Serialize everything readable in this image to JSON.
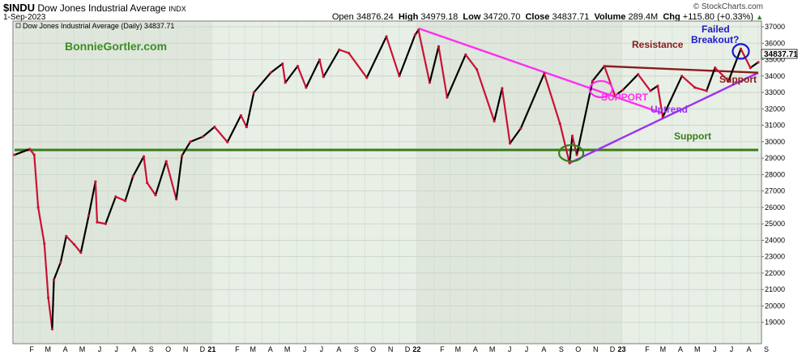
{
  "header": {
    "symbol": "$INDU",
    "name": "Dow Jones Industrial Average",
    "exchange": "INDX",
    "date": "1-Sep-2023",
    "copyright": "© StockCharts.com",
    "open_label": "Open",
    "open": "34876.24",
    "high_label": "High",
    "high": "34979.18",
    "low_label": "Low",
    "low": "34720.70",
    "close_label": "Close",
    "close": "34837.71",
    "volume_label": "Volume",
    "volume": "289.4M",
    "chg_label": "Chg",
    "chg": "+115.80 (+0.33%)",
    "chg_arrow": "▲",
    "legend": "Dow Jones Industrial Average (Daily) 34837.71",
    "price_tag": "34837.71"
  },
  "watermark": "BonnieGortler.com",
  "colors": {
    "up": "#000000",
    "down": "#cc1133",
    "bg": "#e8efe6",
    "bg_alt": "#dfe6dc",
    "green_line": "#3a7d1a",
    "magenta": "#ff2ef0",
    "purple": "#9933ee",
    "resistance": "#8b1a1a",
    "blue": "#1a1acc",
    "watermark": "#3a8d24"
  },
  "chart_data": {
    "type": "line",
    "title": "Dow Jones Industrial Average (Daily) 34837.71",
    "xlabel": "",
    "ylabel": "",
    "ylim": [
      18000,
      37000
    ],
    "y_ticks": [
      19000,
      20000,
      21000,
      22000,
      23000,
      24000,
      25000,
      26000,
      27000,
      28000,
      29000,
      30000,
      31000,
      32000,
      33000,
      34000,
      35000,
      36000,
      37000
    ],
    "x_tick_labels": [
      "F",
      "M",
      "A",
      "M",
      "J",
      "J",
      "A",
      "S",
      "O",
      "N",
      "D",
      "21",
      "F",
      "M",
      "A",
      "M",
      "J",
      "J",
      "A",
      "S",
      "O",
      "N",
      "D",
      "22",
      "F",
      "M",
      "A",
      "M",
      "J",
      "J",
      "A",
      "S",
      "O",
      "N",
      "D",
      "23",
      "F",
      "M",
      "A",
      "M",
      "J",
      "J",
      "A",
      "S"
    ],
    "x_start": "2020-01-16",
    "x_end": "2023-09-01",
    "grid": true,
    "series": [
      {
        "name": "",
        "points": [
          [
            "2020-01-16",
            29200
          ],
          [
            "2020-02-12",
            29550
          ],
          [
            "2020-02-20",
            29200
          ],
          [
            "2020-02-27",
            26000
          ],
          [
            "2020-03-09",
            23800
          ],
          [
            "2020-03-16",
            20500
          ],
          [
            "2020-03-23",
            18590
          ],
          [
            "2020-03-26",
            21600
          ],
          [
            "2020-04-07",
            22650
          ],
          [
            "2020-04-17",
            24250
          ],
          [
            "2020-05-01",
            23750
          ],
          [
            "2020-05-13",
            23250
          ],
          [
            "2020-05-27",
            25500
          ],
          [
            "2020-06-08",
            27570
          ],
          [
            "2020-06-11",
            25100
          ],
          [
            "2020-06-26",
            25000
          ],
          [
            "2020-07-14",
            26650
          ],
          [
            "2020-07-31",
            26400
          ],
          [
            "2020-08-14",
            27900
          ],
          [
            "2020-09-02",
            29100
          ],
          [
            "2020-09-08",
            27500
          ],
          [
            "2020-09-23",
            26750
          ],
          [
            "2020-10-12",
            28800
          ],
          [
            "2020-10-30",
            26500
          ],
          [
            "2020-11-09",
            29150
          ],
          [
            "2020-11-24",
            30000
          ],
          [
            "2020-12-16",
            30300
          ],
          [
            "2021-01-06",
            30900
          ],
          [
            "2021-01-29",
            29980
          ],
          [
            "2021-02-22",
            31600
          ],
          [
            "2021-03-04",
            30900
          ],
          [
            "2021-03-17",
            33000
          ],
          [
            "2021-04-16",
            34200
          ],
          [
            "2021-05-07",
            34750
          ],
          [
            "2021-05-12",
            33600
          ],
          [
            "2021-06-03",
            34600
          ],
          [
            "2021-06-18",
            33300
          ],
          [
            "2021-07-12",
            34990
          ],
          [
            "2021-07-19",
            33950
          ],
          [
            "2021-08-16",
            35600
          ],
          [
            "2021-09-02",
            35400
          ],
          [
            "2021-10-04",
            33900
          ],
          [
            "2021-11-08",
            36400
          ],
          [
            "2021-12-01",
            34000
          ],
          [
            "2021-12-29",
            36500
          ],
          [
            "2022-01-04",
            36800
          ],
          [
            "2022-01-24",
            33600
          ],
          [
            "2022-02-09",
            35800
          ],
          [
            "2022-02-24",
            32700
          ],
          [
            "2022-03-29",
            35300
          ],
          [
            "2022-04-18",
            34400
          ],
          [
            "2022-05-19",
            31250
          ],
          [
            "2022-06-02",
            33250
          ],
          [
            "2022-06-16",
            29900
          ],
          [
            "2022-07-05",
            30800
          ],
          [
            "2022-08-16",
            34150
          ],
          [
            "2022-09-13",
            31100
          ],
          [
            "2022-09-30",
            28700
          ],
          [
            "2022-10-05",
            30350
          ],
          [
            "2022-10-13",
            29200
          ],
          [
            "2022-11-10",
            33700
          ],
          [
            "2022-12-01",
            34600
          ],
          [
            "2022-12-20",
            32800
          ],
          [
            "2023-01-03",
            33150
          ],
          [
            "2023-01-30",
            34100
          ],
          [
            "2023-02-21",
            33100
          ],
          [
            "2023-03-06",
            33400
          ],
          [
            "2023-03-15",
            31500
          ],
          [
            "2023-04-18",
            34000
          ],
          [
            "2023-05-11",
            33300
          ],
          [
            "2023-06-01",
            33100
          ],
          [
            "2023-06-16",
            34500
          ],
          [
            "2023-07-10",
            33700
          ],
          [
            "2023-08-01",
            35650
          ],
          [
            "2023-08-18",
            34500
          ],
          [
            "2023-09-01",
            34837.71
          ]
        ]
      }
    ],
    "annotations": [
      {
        "text": "Resistance",
        "color": "#8b1a1a"
      },
      {
        "text": "Failed",
        "color": "#1a1acc"
      },
      {
        "text": "Breakout?",
        "color": "#1a1acc"
      },
      {
        "text": "Support",
        "color": "#8b1a1a"
      },
      {
        "text": "SUPPORT",
        "color": "#ff2ef0"
      },
      {
        "text": "Uptrend",
        "color": "#9933ee"
      },
      {
        "text": "Support",
        "color": "#3a7d1a"
      }
    ],
    "trendlines": [
      {
        "name": "support-horizontal",
        "color": "#3a7d1a",
        "from": [
          "2020-01-16",
          29500
        ],
        "to": [
          "2023-09-01",
          29500
        ]
      },
      {
        "name": "magenta-downtrend",
        "color": "#ff2ef0",
        "from": [
          "2022-01-04",
          36900
        ],
        "to": [
          "2023-03-17",
          31700
        ]
      },
      {
        "name": "uptrend",
        "color": "#9933ee",
        "from": [
          "2022-09-30",
          28700
        ],
        "to": [
          "2023-09-01",
          34200
        ]
      },
      {
        "name": "resistance",
        "color": "#8b1a1a",
        "from": [
          "2022-12-01",
          34600
        ],
        "to": [
          "2023-09-01",
          34200
        ]
      }
    ],
    "circles": [
      {
        "name": "green-circle",
        "color": "#3a7d1a",
        "at": [
          "2022-10-03",
          29300
        ]
      },
      {
        "name": "magenta-circle",
        "color": "#ff2ef0",
        "at": [
          "2022-11-25",
          33200
        ]
      },
      {
        "name": "blue-circle",
        "color": "#1a1acc",
        "at": [
          "2023-08-01",
          35500
        ]
      }
    ]
  }
}
